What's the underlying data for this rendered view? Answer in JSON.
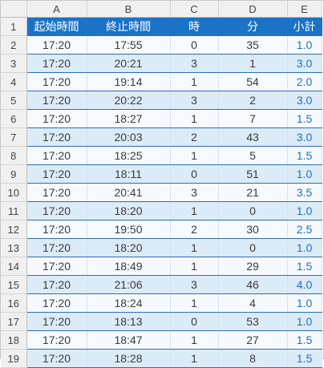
{
  "columns": [
    "A",
    "B",
    "C",
    "D",
    "E"
  ],
  "headers": [
    "起始時間",
    "終止時間",
    "時",
    "分",
    "小計"
  ],
  "rows": [
    {
      "n": "2",
      "start": "17:20",
      "end": "17:55",
      "h": "0",
      "m": "35",
      "sub": "1.0"
    },
    {
      "n": "3",
      "start": "17:20",
      "end": "20:21",
      "h": "3",
      "m": "1",
      "sub": "3.0"
    },
    {
      "n": "4",
      "start": "17:20",
      "end": "19:14",
      "h": "1",
      "m": "54",
      "sub": "2.0"
    },
    {
      "n": "5",
      "start": "17:20",
      "end": "20:22",
      "h": "3",
      "m": "2",
      "sub": "3.0"
    },
    {
      "n": "6",
      "start": "17:20",
      "end": "18:27",
      "h": "1",
      "m": "7",
      "sub": "1.5"
    },
    {
      "n": "7",
      "start": "17:20",
      "end": "20:03",
      "h": "2",
      "m": "43",
      "sub": "3.0"
    },
    {
      "n": "8",
      "start": "17:20",
      "end": "18:25",
      "h": "1",
      "m": "5",
      "sub": "1.5"
    },
    {
      "n": "9",
      "start": "17:20",
      "end": "18:11",
      "h": "0",
      "m": "51",
      "sub": "1.0"
    },
    {
      "n": "10",
      "start": "17:20",
      "end": "20:41",
      "h": "3",
      "m": "21",
      "sub": "3.5"
    },
    {
      "n": "11",
      "start": "17:20",
      "end": "18:20",
      "h": "1",
      "m": "0",
      "sub": "1.0"
    },
    {
      "n": "12",
      "start": "17:20",
      "end": "19:50",
      "h": "2",
      "m": "30",
      "sub": "2.5"
    },
    {
      "n": "13",
      "start": "17:20",
      "end": "18:20",
      "h": "1",
      "m": "0",
      "sub": "1.0"
    },
    {
      "n": "14",
      "start": "17:20",
      "end": "18:49",
      "h": "1",
      "m": "29",
      "sub": "1.5"
    },
    {
      "n": "15",
      "start": "17:20",
      "end": "21:06",
      "h": "3",
      "m": "46",
      "sub": "4.0"
    },
    {
      "n": "16",
      "start": "17:20",
      "end": "18:24",
      "h": "1",
      "m": "4",
      "sub": "1.0"
    },
    {
      "n": "17",
      "start": "17:20",
      "end": "18:13",
      "h": "0",
      "m": "53",
      "sub": "1.0"
    },
    {
      "n": "18",
      "start": "17:20",
      "end": "18:47",
      "h": "1",
      "m": "27",
      "sub": "1.5"
    },
    {
      "n": "19",
      "start": "17:20",
      "end": "18:28",
      "h": "1",
      "m": "8",
      "sub": "1.5"
    }
  ]
}
